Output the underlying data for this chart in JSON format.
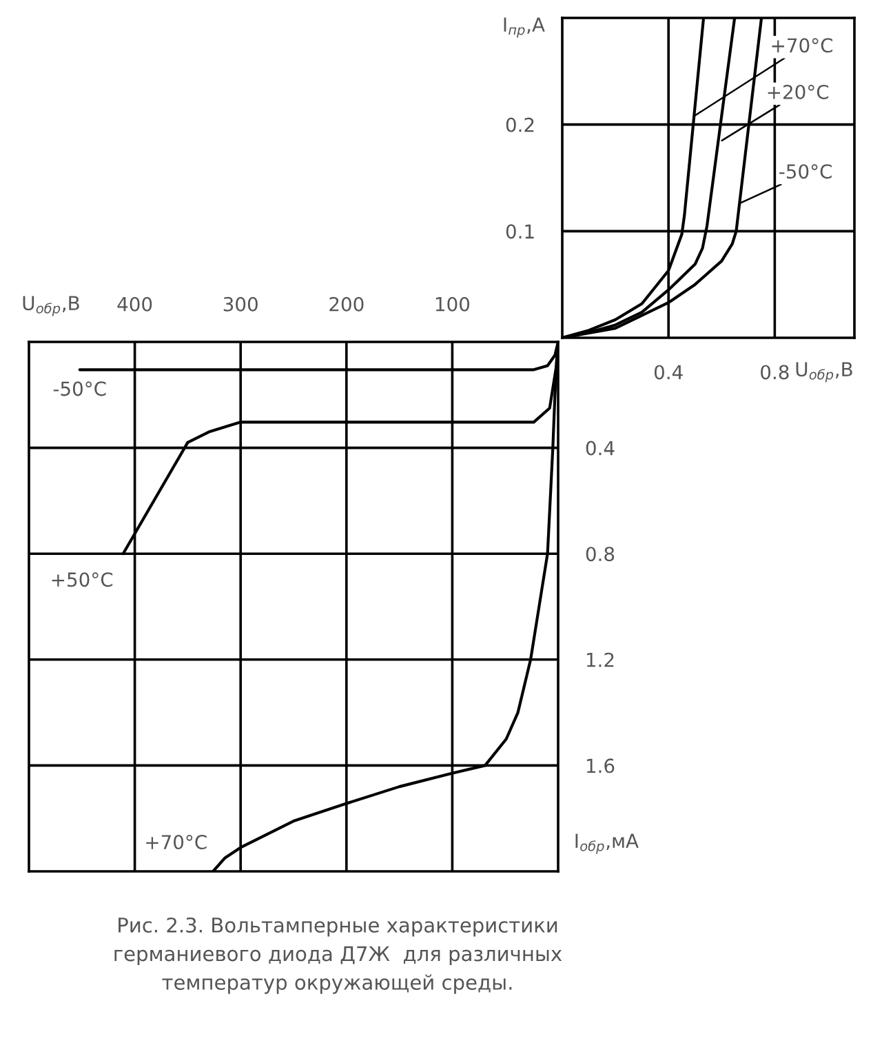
{
  "chart_data": [
    {
      "type": "line",
      "xlabel": "U$_{обр}$,В",
      "ylabel": "I$_{пр}$,А",
      "xlim": [
        0,
        1.1
      ],
      "ylim": [
        0,
        0.3
      ],
      "xticks": [
        0.4,
        0.8
      ],
      "yticks": [
        0.1,
        0.2
      ],
      "grid": true,
      "series": [
        {
          "color": "#000000",
          "x": [
            0,
            0.1,
            0.2,
            0.3,
            0.4,
            0.45,
            0.46,
            0.532
          ],
          "values": [
            0,
            0.007,
            0.017,
            0.032,
            0.063,
            0.097,
            0.115,
            0.3
          ]
        },
        {
          "color": "#000000",
          "x": [
            0,
            0.1,
            0.2,
            0.3,
            0.4,
            0.5,
            0.528,
            0.545,
            0.649
          ],
          "values": [
            0,
            0.005,
            0.012,
            0.024,
            0.045,
            0.069,
            0.084,
            0.105,
            0.3
          ]
        },
        {
          "color": "#000000",
          "x": [
            0,
            0.2,
            0.4,
            0.5,
            0.6,
            0.64,
            0.655,
            0.75
          ],
          "values": [
            0,
            0.009,
            0.033,
            0.05,
            0.072,
            0.088,
            0.1,
            0.3
          ]
        }
      ],
      "annotations": [
        {
          "text": "+70°C",
          "x": 0.497,
          "y": 0.208
        },
        {
          "text": "+20°C",
          "x": 0.601,
          "y": 0.185
        },
        {
          "text": "-50°C",
          "x": 0.667,
          "y": 0.126
        }
      ]
    },
    {
      "type": "line",
      "xlabel": "U$_{обр}$,В",
      "ylabel": "I$_{обр}$,мА",
      "xlim": [
        500,
        0
      ],
      "ylim": [
        2.0,
        0
      ],
      "xticks": [
        400,
        300,
        200,
        100
      ],
      "yticks": [
        0.4,
        0.8,
        1.2,
        1.6
      ],
      "grid": true,
      "series": [
        {
          "color": "#000000",
          "x": [
            452,
            23,
            10,
            3,
            0
          ],
          "values": [
            0.105,
            0.105,
            0.09,
            0.05,
            0
          ]
        },
        {
          "color": "#000000",
          "x": [
            411,
            350,
            330,
            300,
            23,
            8,
            2,
            0
          ],
          "values": [
            0.8,
            0.38,
            0.34,
            0.303,
            0.303,
            0.25,
            0.1,
            0
          ]
        },
        {
          "color": "#000000",
          "x": [
            0,
            3,
            5,
            10,
            18,
            26,
            38,
            49,
            69,
            101,
            150,
            201,
            250,
            300,
            315,
            326
          ],
          "values": [
            0,
            0.2,
            0.4,
            0.8,
            1.0,
            1.2,
            1.4,
            1.5,
            1.6,
            1.63,
            1.68,
            1.745,
            1.81,
            1.91,
            1.95,
            2.0
          ]
        }
      ],
      "annotations": [
        {
          "text": "-50°C",
          "x": 452,
          "y": 0.105
        },
        {
          "text": "+50°C",
          "x": 411,
          "y": 0.8
        },
        {
          "text": "+70°C",
          "x": 326,
          "y": 2.0
        },
        "Рис. 2.3. Вольтамперные характеристики\nгерманиевого диода Д7Ж  для различных\nтемператур окружающей среды."
      ]
    }
  ]
}
